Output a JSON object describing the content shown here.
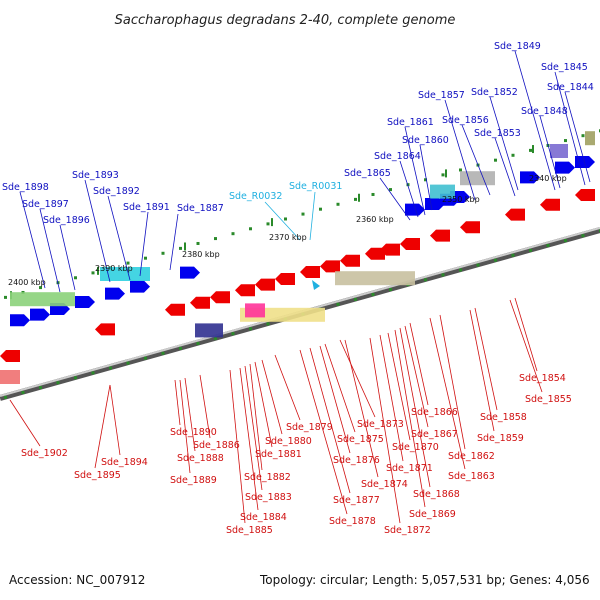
{
  "title": "Saccharophagus degradans 2-40, complete genome",
  "footer": {
    "accession": "Accession: NC_007912",
    "summary": "Topology: circular; Length: 5,057,531 bp; Genes: 4,056"
  },
  "colors": {
    "forward_gene_label": "#1010c0",
    "reverse_gene_label": "#d01010",
    "rna_label": "#20b0e0",
    "forward_arrow": "#0000ee",
    "reverse_arrow": "#ee0000",
    "backbone": "#777777"
  },
  "kbp_ticks": [
    "2400 kbp",
    "2390 kbp",
    "2380 kbp",
    "2370 kbp",
    "2360 kbp",
    "2350 kbp",
    "2340 kbp"
  ],
  "forward_labels": [
    "Sde_1898",
    "Sde_1897",
    "Sde_1896",
    "Sde_1893",
    "Sde_1892",
    "Sde_1891",
    "Sde_1887",
    "Sde_1865",
    "Sde_1864",
    "Sde_1861",
    "Sde_1860",
    "Sde_1857",
    "Sde_1856",
    "Sde_1853",
    "Sde_1852",
    "Sde_1849",
    "Sde_1848",
    "Sde_1845",
    "Sde_1844"
  ],
  "rna_labels": [
    "Sde_R0032",
    "Sde_R0031"
  ],
  "reverse_labels": [
    "Sde_1902",
    "Sde_1895",
    "Sde_1894",
    "Sde_1890",
    "Sde_1889",
    "Sde_1888",
    "Sde_1886",
    "Sde_1885",
    "Sde_1884",
    "Sde_1883",
    "Sde_1882",
    "Sde_1881",
    "Sde_1880",
    "Sde_1879",
    "Sde_1878",
    "Sde_1877",
    "Sde_1876",
    "Sde_1875",
    "Sde_1874",
    "Sde_1873",
    "Sde_1872",
    "Sde_1871",
    "Sde_1870",
    "Sde_1869",
    "Sde_1868",
    "Sde_1867",
    "Sde_1866",
    "Sde_1863",
    "Sde_1862",
    "Sde_1859",
    "Sde_1858",
    "Sde_1855",
    "Sde_1854"
  ]
}
